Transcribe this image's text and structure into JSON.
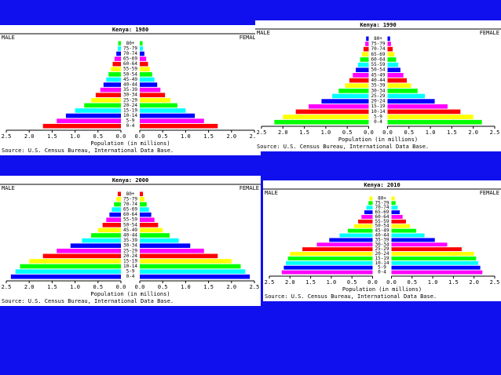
{
  "chart_data": [
    {
      "type": "pyramid",
      "title": "Kenya: 1980",
      "xlabel": "Population (in millions)",
      "source": "Source: U.S. Census Bureau, International Data Base.",
      "categories": [
        "0-4",
        "5-9",
        "10-14",
        "15-19",
        "20-24",
        "25-29",
        "30-34",
        "35-39",
        "40-44",
        "45-49",
        "50-54",
        "55-59",
        "60-64",
        "65-69",
        "70-74",
        "75-79",
        "80+"
      ],
      "series": [
        {
          "name": "MALE",
          "values": [
            1.7,
            1.4,
            1.2,
            1.0,
            0.8,
            0.65,
            0.55,
            0.45,
            0.38,
            0.32,
            0.27,
            0.22,
            0.18,
            0.14,
            0.1,
            0.07,
            0.06
          ]
        },
        {
          "name": "FEMALE",
          "values": [
            1.7,
            1.4,
            1.2,
            1.0,
            0.82,
            0.67,
            0.55,
            0.45,
            0.38,
            0.32,
            0.27,
            0.22,
            0.18,
            0.14,
            0.1,
            0.07,
            0.06
          ]
        }
      ],
      "colors": [
        "#ff0000",
        "#ff00ff",
        "#0000ff",
        "#00ffff",
        "#00ff00",
        "#ffff00"
      ],
      "xlim": [
        0,
        2.5
      ],
      "xticks": [
        {
          "value": 0,
          "label": "0.0"
        },
        0.5,
        {
          "value": 1,
          "label": "1.0"
        },
        1.5,
        {
          "value": 2,
          "label": "2.0"
        },
        2.5
      ]
    },
    {
      "type": "pyramid",
      "title": "Kenya: 1990",
      "xlabel": "Population (in millions)",
      "source": "Source: U.S. Census Bureau, International Data Base.",
      "categories": [
        "0-4",
        "5-9",
        "10-14",
        "15-19",
        "20-24",
        "25-29",
        "30-34",
        "35-39",
        "40-44",
        "45-49",
        "50-54",
        "55-59",
        "60-64",
        "65-69",
        "70-74",
        "75-79",
        "80+"
      ],
      "series": [
        {
          "name": "MALE",
          "values": [
            2.2,
            2.0,
            1.7,
            1.4,
            1.1,
            0.85,
            0.7,
            0.55,
            0.45,
            0.37,
            0.3,
            0.25,
            0.2,
            0.16,
            0.12,
            0.08,
            0.06
          ]
        },
        {
          "name": "FEMALE",
          "values": [
            2.2,
            2.0,
            1.7,
            1.4,
            1.1,
            0.87,
            0.7,
            0.55,
            0.45,
            0.37,
            0.3,
            0.25,
            0.2,
            0.16,
            0.12,
            0.08,
            0.06
          ]
        }
      ],
      "colors": [
        "#00ff00",
        "#ffff00",
        "#ff0000",
        "#ff00ff",
        "#0000ff",
        "#00ffff"
      ],
      "xlim": [
        0,
        2.5
      ],
      "xticks": [
        {
          "value": 0,
          "label": "0.0"
        },
        0.5,
        {
          "value": 1,
          "label": "1.0"
        },
        1.5,
        {
          "value": 2,
          "label": "2.0"
        },
        2.5
      ]
    },
    {
      "type": "pyramid",
      "title": "Kenya: 2000",
      "xlabel": "Population (in millions)",
      "source": "Source: U.S. Census Bureau, International Data Base.",
      "categories": [
        "0-4",
        "5-9",
        "10-14",
        "15-19",
        "20-24",
        "25-29",
        "30-34",
        "35-39",
        "40-44",
        "45-49",
        "50-54",
        "55-59",
        "60-64",
        "65-69",
        "70-74",
        "75-79",
        "80+"
      ],
      "series": [
        {
          "name": "MALE",
          "values": [
            2.4,
            2.3,
            2.2,
            2.0,
            1.7,
            1.4,
            1.1,
            0.85,
            0.65,
            0.5,
            0.4,
            0.32,
            0.25,
            0.2,
            0.15,
            0.1,
            0.07
          ]
        },
        {
          "name": "FEMALE",
          "values": [
            2.4,
            2.3,
            2.2,
            2.0,
            1.7,
            1.4,
            1.1,
            0.85,
            0.65,
            0.5,
            0.4,
            0.32,
            0.25,
            0.2,
            0.15,
            0.1,
            0.07
          ]
        }
      ],
      "colors": [
        "#0000ff",
        "#00ffff",
        "#00ff00",
        "#ffff00",
        "#ff0000",
        "#ff00ff"
      ],
      "xlim": [
        0,
        2.5
      ],
      "xticks": [
        {
          "value": 0,
          "label": "0.0"
        },
        0.5,
        {
          "value": 1,
          "label": "1.0"
        },
        1.5,
        {
          "value": 2,
          "label": "2.0"
        },
        2.5
      ]
    },
    {
      "type": "pyramid",
      "title": "Kenya: 2010",
      "xlabel": "Population (in millions)",
      "source": "Source: U.S. Census Bureau, International Data Base.",
      "categories": [
        "0-4",
        "5-9",
        "10-14",
        "15-19",
        "20-24",
        "25-29",
        "30-34",
        "35-39",
        "40-44",
        "45-49",
        "50-54",
        "55-59",
        "60-64",
        "65-69",
        "70-74",
        "75-79",
        "80+"
      ],
      "series": [
        {
          "name": "MALE",
          "values": [
            2.2,
            2.15,
            2.1,
            2.05,
            2.0,
            1.7,
            1.35,
            1.05,
            0.8,
            0.6,
            0.45,
            0.35,
            0.27,
            0.2,
            0.15,
            0.1,
            0.08
          ]
        },
        {
          "name": "FEMALE",
          "values": [
            2.2,
            2.15,
            2.1,
            2.05,
            2.0,
            1.7,
            1.35,
            1.05,
            0.8,
            0.6,
            0.45,
            0.35,
            0.27,
            0.2,
            0.15,
            0.1,
            0.08
          ]
        }
      ],
      "colors": [
        "#ff00ff",
        "#0000ff",
        "#00ffff",
        "#00ff00",
        "#ffff00",
        "#ff0000"
      ],
      "xlim": [
        0,
        2.5
      ],
      "xticks": [
        {
          "value": 0,
          "label": "0.0"
        },
        0.5,
        {
          "value": 1,
          "label": "1.0"
        },
        1.5,
        {
          "value": 2,
          "label": "2.0"
        },
        2.5
      ]
    }
  ]
}
